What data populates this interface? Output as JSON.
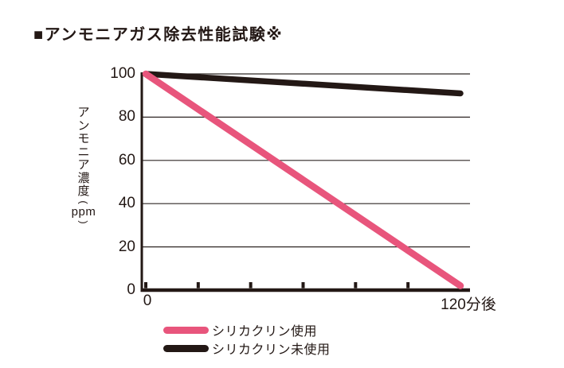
{
  "title": "■アンモニアガス除去性能試験※",
  "colors": {
    "text": "#231815",
    "grid": "#2f2725",
    "background": "#ffffff",
    "pink": "#e8557c",
    "black_line": "#231815"
  },
  "chart_data": {
    "type": "line",
    "title": "アンモニアガス除去性能試験",
    "ylabel": "アンモニア濃度(ppm)",
    "ylabel_vertical_text": "アンモニア濃度",
    "ylabel_paren_open": "(",
    "ylabel_unit": "ppm",
    "ylabel_paren_close": ")",
    "xlabel": "",
    "xlim": [
      0,
      120
    ],
    "ylim": [
      0,
      100
    ],
    "yticks": [
      100,
      80,
      60,
      40,
      20,
      0
    ],
    "x_minor_ticks_minutes": [
      0,
      20,
      40,
      60,
      80,
      100
    ],
    "x_tick_labels": [
      "0",
      "120分後"
    ],
    "grid": true,
    "legend_position": "bottom-left",
    "series": [
      {
        "name": "シリカクリン使用",
        "color": "#e8557c",
        "x": [
          0,
          120
        ],
        "values": [
          100,
          2
        ]
      },
      {
        "name": "シリカクリン未使用",
        "color": "#231815",
        "x": [
          0,
          120
        ],
        "values": [
          100,
          91
        ]
      }
    ]
  }
}
